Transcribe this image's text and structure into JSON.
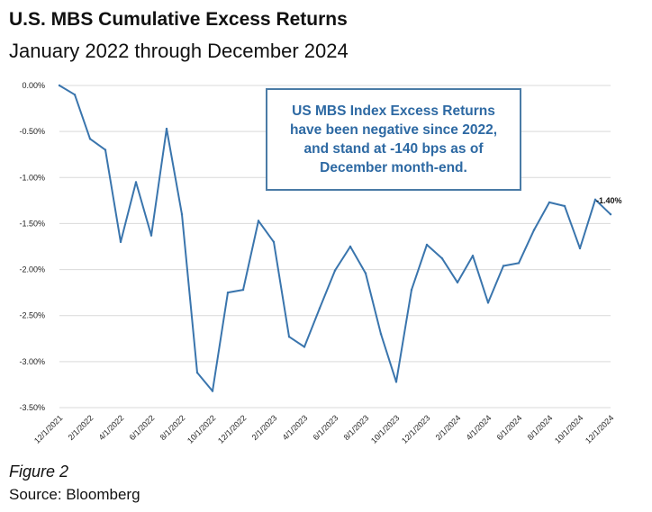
{
  "header": {
    "title": "U.S. MBS Cumulative Excess Returns",
    "subtitle": "January 2022 through December 2024"
  },
  "callout": {
    "text": "US MBS Index Excess Returns have been negative since 2022, and stand at -140 bps as of December month-end."
  },
  "footer": {
    "figure": "Figure 2",
    "source": "Source: Bloomberg"
  },
  "colors": {
    "line": "#3a75ad",
    "grid": "#d9d9d9",
    "callout_text": "#2d69a3"
  },
  "chart_data": {
    "type": "line",
    "title": "U.S. MBS Cumulative Excess Returns",
    "ylim": [
      -3.5,
      0.0
    ],
    "y_ticks": [
      0.0,
      -0.5,
      -1.0,
      -1.5,
      -2.0,
      -2.5,
      -3.0,
      -3.5
    ],
    "y_tick_labels": [
      "0.00%",
      "-0.50%",
      "-1.00%",
      "-1.50%",
      "-2.00%",
      "-2.50%",
      "-3.00%",
      "-3.50%"
    ],
    "x_tick_labels": [
      "12/1/2021",
      "2/1/2022",
      "4/1/2022",
      "6/1/2022",
      "8/1/2022",
      "10/1/2022",
      "12/1/2022",
      "2/1/2023",
      "4/1/2023",
      "6/1/2023",
      "8/1/2023",
      "10/1/2023",
      "12/1/2023",
      "2/1/2024",
      "4/1/2024",
      "6/1/2024",
      "8/1/2024",
      "10/1/2024",
      "12/1/2024"
    ],
    "grid": true,
    "x": [
      "12/1/2021",
      "1/1/2022",
      "2/1/2022",
      "3/1/2022",
      "4/1/2022",
      "5/1/2022",
      "6/1/2022",
      "7/1/2022",
      "8/1/2022",
      "9/1/2022",
      "10/1/2022",
      "11/1/2022",
      "12/1/2022",
      "1/1/2023",
      "2/1/2023",
      "3/1/2023",
      "4/1/2023",
      "5/1/2023",
      "6/1/2023",
      "7/1/2023",
      "8/1/2023",
      "9/1/2023",
      "10/1/2023",
      "11/1/2023",
      "12/1/2023",
      "1/1/2024",
      "2/1/2024",
      "3/1/2024",
      "4/1/2024",
      "5/1/2024",
      "6/1/2024",
      "7/1/2024",
      "8/1/2024",
      "9/1/2024",
      "10/1/2024",
      "11/1/2024",
      "12/1/2024"
    ],
    "series": [
      {
        "values": [
          0.0,
          -0.1,
          -0.58,
          -0.7,
          -1.7,
          -1.05,
          -1.63,
          -0.47,
          -1.4,
          -3.12,
          -3.32,
          -2.25,
          -2.22,
          -1.47,
          -1.7,
          -2.73,
          -2.84,
          -2.42,
          -2.01,
          -1.75,
          -2.04,
          -2.7,
          -3.22,
          -2.22,
          -1.73,
          -1.88,
          -2.14,
          -1.85,
          -2.36,
          -1.96,
          -1.93,
          -1.57,
          -1.27,
          -1.31,
          -1.77,
          -1.24,
          -1.4
        ]
      }
    ],
    "annotations": [
      {
        "x": "12/1/2024",
        "label": "-1.40%"
      }
    ]
  }
}
